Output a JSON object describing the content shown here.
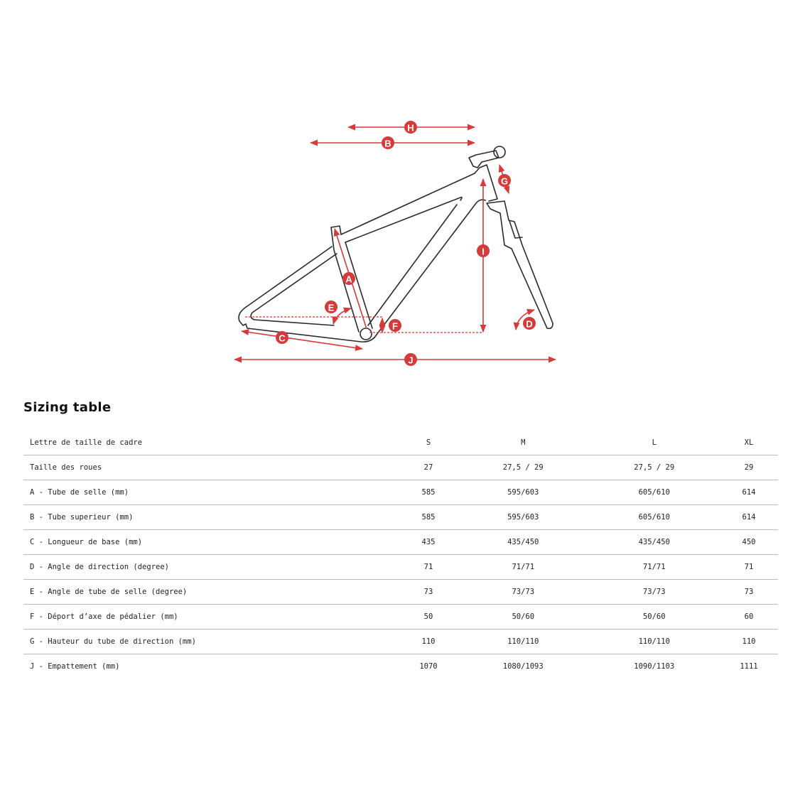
{
  "diagram": {
    "labels": [
      "H",
      "B",
      "G",
      "I",
      "A",
      "E",
      "F",
      "C",
      "D",
      "J"
    ],
    "accent_color": "#d63a3a",
    "frame_color": "#2a2a2a"
  },
  "title": "Sizing table",
  "table": {
    "header": [
      "Lettre de taille de cadre",
      "S",
      "M",
      "L",
      "XL"
    ],
    "rows": [
      [
        "Taille des roues",
        "27",
        "27,5 / 29",
        "27,5 / 29",
        "29"
      ],
      [
        "A - Tube de selle (mm)",
        "585",
        "595/603",
        "605/610",
        "614"
      ],
      [
        "B - Tube superieur (mm)",
        "585",
        "595/603",
        "605/610",
        "614"
      ],
      [
        "C - Longueur de base (mm)",
        "435",
        "435/450",
        "435/450",
        "450"
      ],
      [
        "D - Angle de direction (degree)",
        "71",
        "71/71",
        "71/71",
        "71"
      ],
      [
        "E - Angle de tube de selle (degree)",
        "73",
        "73/73",
        "73/73",
        "73"
      ],
      [
        "F - Déport d’axe de pédalier (mm)",
        "50",
        "50/60",
        "50/60",
        "60"
      ],
      [
        "G - Hauteur du tube de direction (mm)",
        "110",
        "110/110",
        "110/110",
        "110"
      ],
      [
        "J - Empattement (mm)",
        "1070",
        "1080/1093",
        "1090/1103",
        "1111"
      ]
    ]
  }
}
